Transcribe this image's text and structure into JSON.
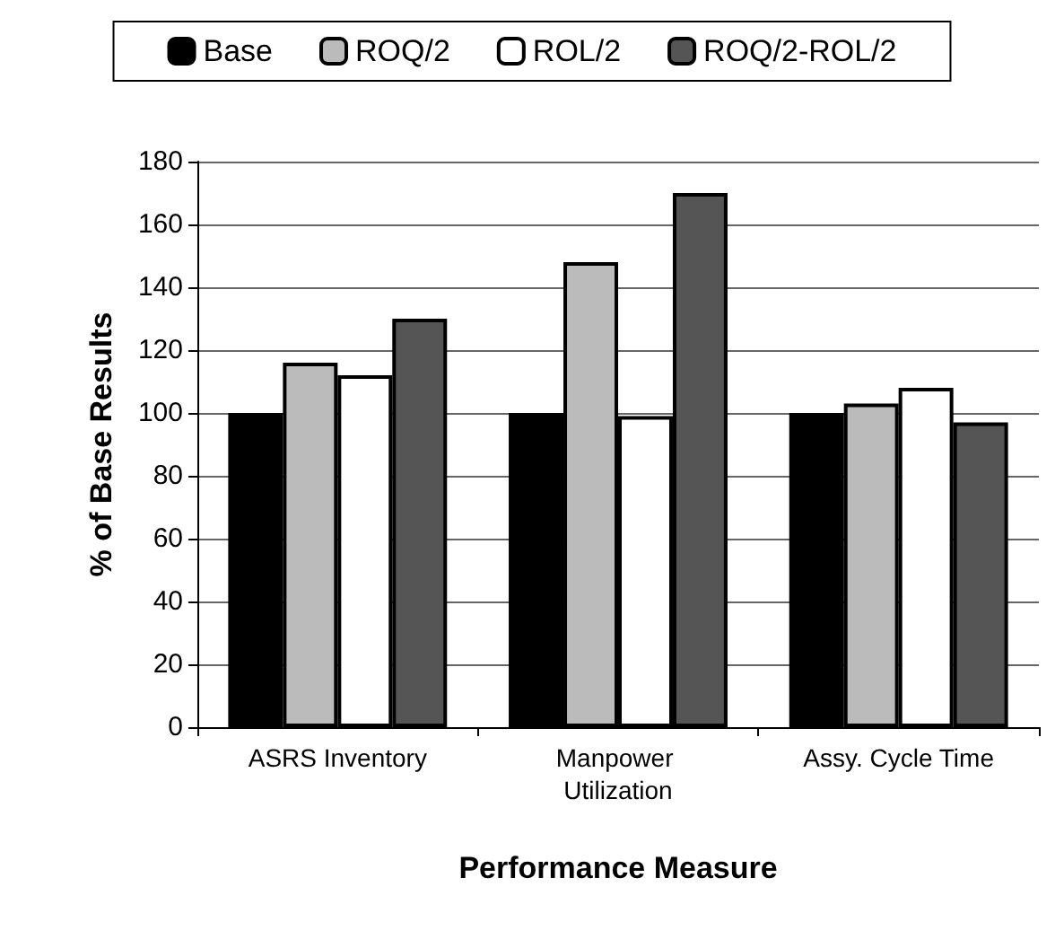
{
  "chart_data": {
    "type": "bar",
    "xlabel": "Performance Measure",
    "ylabel": "% of Base Results",
    "categories": [
      "ASRS Inventory",
      "Manpower Utilization",
      "Assy. Cycle Time"
    ],
    "series": [
      {
        "name": "Base",
        "color": "#000000",
        "values": [
          100,
          100,
          100
        ]
      },
      {
        "name": "ROQ/2",
        "color": "#bbbbbb",
        "values": [
          116,
          148,
          103
        ]
      },
      {
        "name": "ROL/2",
        "color": "#ffffff",
        "values": [
          112,
          99,
          108
        ]
      },
      {
        "name": "ROQ/2-ROL/2",
        "color": "#555555",
        "values": [
          130,
          170,
          97
        ]
      }
    ],
    "ylim": [
      0,
      180
    ],
    "yticks": [
      0,
      20,
      40,
      60,
      80,
      100,
      120,
      140,
      160,
      180
    ],
    "grid": "y",
    "legend": "top"
  }
}
